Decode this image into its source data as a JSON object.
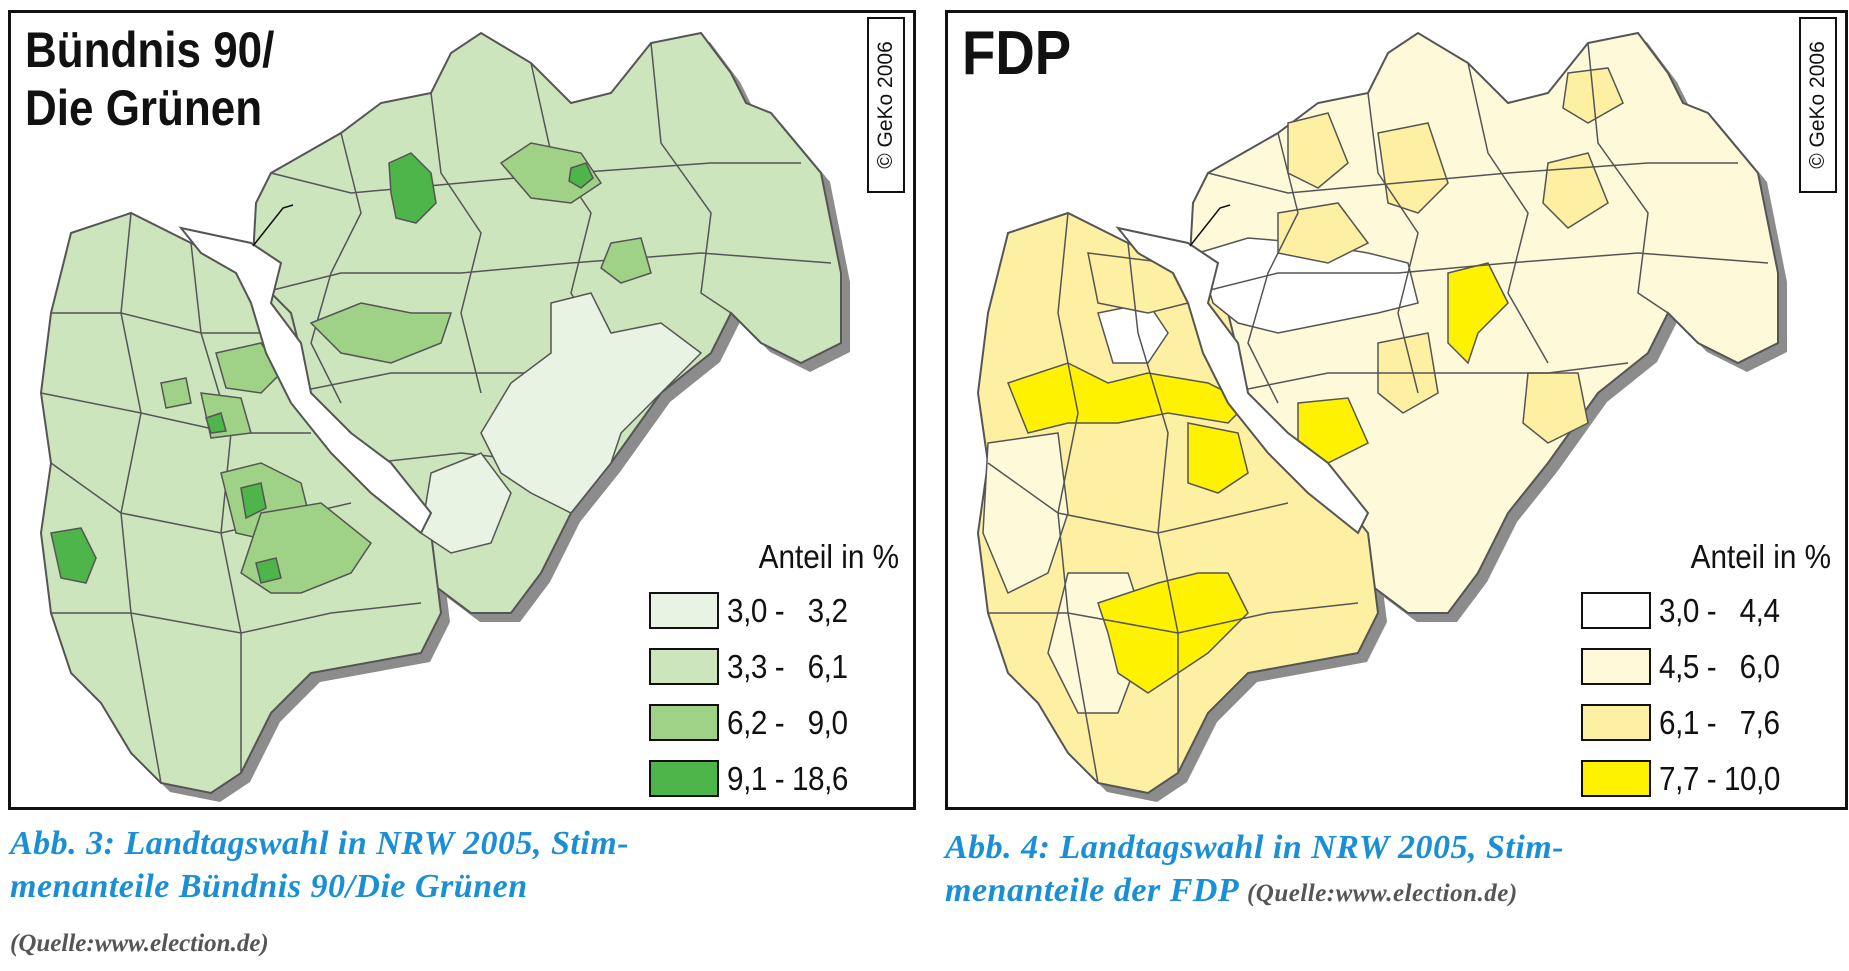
{
  "left_map": {
    "title": "Bündnis 90/\nDie Grünen",
    "copyright": "© GeKo 2006",
    "legend_title": "Anteil in %",
    "legend": [
      {
        "label": "3,0 -   3,2",
        "color": "#e8f3e3"
      },
      {
        "label": "3,3 -   6,1",
        "color": "#cde5bd"
      },
      {
        "label": "6,2 -   9,0",
        "color": "#9fd186"
      },
      {
        "label": "9,1 - 18,6",
        "color": "#4db54a"
      }
    ]
  },
  "right_map": {
    "title": "FDP",
    "copyright": "© GeKo 2006",
    "legend_title": "Anteil in %",
    "legend": [
      {
        "label": "3,0 -   4,4",
        "color": "#ffffff"
      },
      {
        "label": "4,5 -   6,0",
        "color": "#fdf9d9"
      },
      {
        "label": "6,1 -   7,6",
        "color": "#fdf0a2"
      },
      {
        "label": "7,7 - 10,0",
        "color": "#fff200"
      }
    ]
  },
  "captions": {
    "left": "Abb. 3: Landtagswahl in NRW 2005, Stim-\nmenanteile Bündnis 90/Die Grünen",
    "left_source": "(Quelle:www.election.de)",
    "right": "Abb. 4: Landtagswahl in NRW 2005, Stim-\nmenanteile der FDP",
    "right_source": "(Quelle:www.election.de)"
  },
  "colors": {
    "border": "#555555",
    "shadow": "#8c8c8c",
    "caption": "#1a8fd6"
  }
}
